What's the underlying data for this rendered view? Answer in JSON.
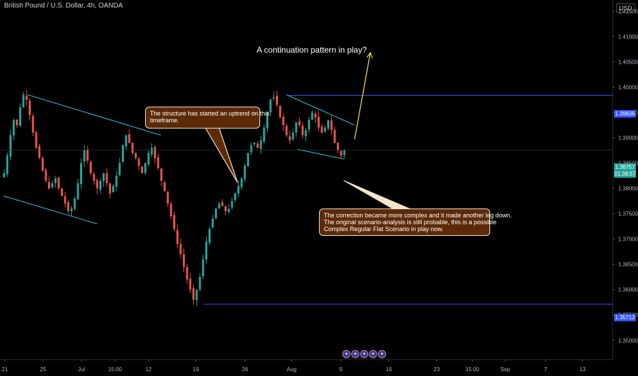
{
  "header": {
    "symbol": "British Pound / U.S. Dollar, 4h, OANDA",
    "currency": "USD"
  },
  "annotations": {
    "headline": "A continuation pattern in play?",
    "callout_1": [
      "The structure has started an uptrend on this",
      "timeframe."
    ],
    "callout_2": [
      "The correction became more complex and it made another leg down.",
      "The original scenario-analysis is still probable, this is a possible",
      "Complex Regular Flat Scenario in play now."
    ]
  },
  "price_tags": {
    "resistance": "1.39836",
    "current": "1.38757",
    "countdown": "01:38:57",
    "support": "1.35712"
  },
  "icons": [
    "icon-1",
    "icon-2",
    "icon-3",
    "icon-4",
    "icon-5"
  ],
  "colors": {
    "background": "#000000",
    "up_candle": "#26a69a",
    "down_candle": "#ef5350",
    "horizontal_line": "#3355ff",
    "channel_line": "#26c6da",
    "arrow": "#ffeb3b",
    "callout_bg": "#5d2a08",
    "current_tag": "#26a69a",
    "resistance_tag": "#3355ff"
  },
  "chart_data": {
    "type": "candlestick",
    "title": "British Pound / U.S. Dollar, 4h, OANDA",
    "y_axis": {
      "range": [
        1.347,
        1.4172
      ],
      "ticks": [
        "1.41500",
        "1.41000",
        "1.40500",
        "1.40000",
        "1.39500",
        "1.39000",
        "1.38500",
        "1.38000",
        "1.37500",
        "1.37000",
        "1.36500",
        "1.36000",
        "1.35500",
        "1.35000"
      ]
    },
    "x_axis": {
      "ticks": [
        "21",
        "25",
        "Jul",
        "15:00",
        "12",
        "19",
        "26",
        "Aug",
        "9",
        "16",
        "23",
        "15:00",
        "Sep",
        "7",
        "13"
      ]
    },
    "horizontal_lines": [
      {
        "name": "resistance",
        "price": 1.39836
      },
      {
        "name": "current",
        "price": 1.38757
      },
      {
        "name": "support",
        "price": 1.35712
      }
    ],
    "trend_lines": [
      {
        "from": [
          "Jun 23",
          1.3985
        ],
        "to": [
          "Jul 13",
          1.3905
        ]
      },
      {
        "from": [
          "Jun 21",
          1.3785
        ],
        "to": [
          "Jul 5",
          1.373
        ]
      },
      {
        "from": [
          "Jul 30",
          1.3985
        ],
        "to": [
          "Aug 10",
          1.3925
        ]
      },
      {
        "from": [
          "Jul 31",
          1.3877
        ],
        "to": [
          "Aug 9",
          1.3858
        ]
      }
    ],
    "arrow": {
      "from": [
        "Aug 10",
        1.3897
      ],
      "to": [
        "Aug 13",
        1.4068
      ]
    },
    "series": [
      {
        "name": "GBPUSD 4h",
        "close_path": [
          1.383,
          1.3865,
          1.3905,
          1.3935,
          1.3925,
          1.396,
          1.3985,
          1.3975,
          1.3945,
          1.391,
          1.388,
          1.386,
          1.3835,
          1.3815,
          1.38,
          1.381,
          1.382,
          1.38,
          1.3785,
          1.377,
          1.3755,
          1.376,
          1.378,
          1.381,
          1.385,
          1.3875,
          1.3855,
          1.383,
          1.3815,
          1.38,
          1.3815,
          1.383,
          1.381,
          1.379,
          1.3805,
          1.3825,
          1.385,
          1.3885,
          1.3905,
          1.389,
          1.387,
          1.386,
          1.3845,
          1.383,
          1.385,
          1.387,
          1.388,
          1.386,
          1.384,
          1.3815,
          1.3795,
          1.377,
          1.3745,
          1.372,
          1.369,
          1.367,
          1.3645,
          1.362,
          1.36,
          1.358,
          1.36,
          1.3625,
          1.366,
          1.3695,
          1.372,
          1.374,
          1.376,
          1.377,
          1.3765,
          1.3755,
          1.376,
          1.3775,
          1.379,
          1.3805,
          1.382,
          1.3845,
          1.387,
          1.3885,
          1.389,
          1.388,
          1.3895,
          1.392,
          1.395,
          1.3975,
          1.398,
          1.3965,
          1.394,
          1.3925,
          1.3905,
          1.3895,
          1.391,
          1.393,
          1.3925,
          1.3905,
          1.3915,
          1.3935,
          1.395,
          1.394,
          1.392,
          1.391,
          1.392,
          1.3935,
          1.3915,
          1.389,
          1.3875,
          1.3865,
          1.3875
        ]
      }
    ]
  }
}
